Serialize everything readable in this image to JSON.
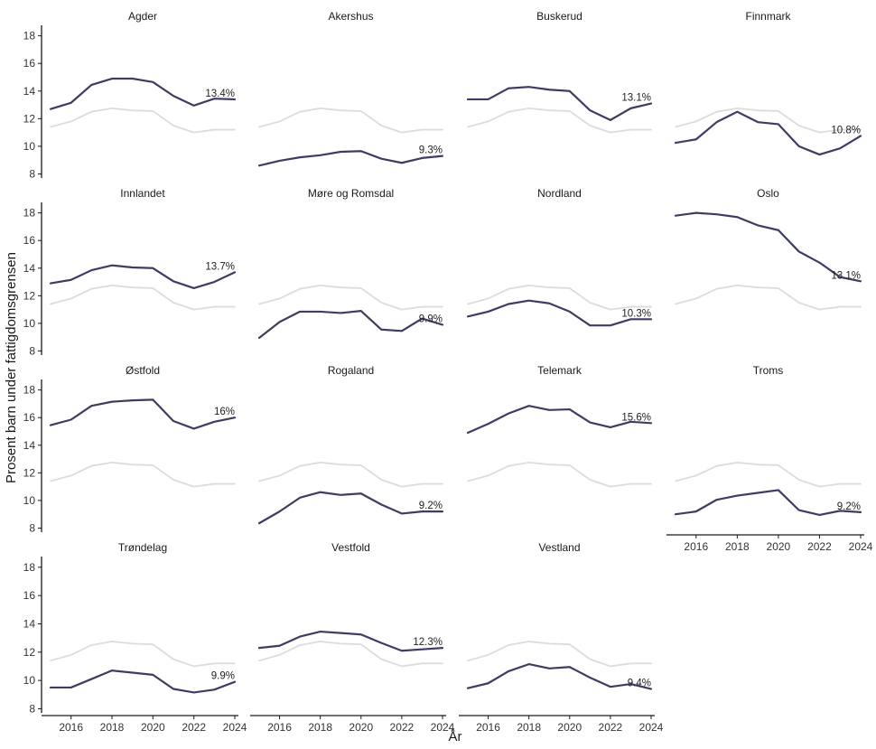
{
  "chart_data": {
    "type": "line",
    "title": "",
    "xlabel": "År",
    "ylabel": "Prosent barn under fattigdomsgrensen",
    "x": [
      2015,
      2016,
      2017,
      2018,
      2019,
      2020,
      2021,
      2022,
      2023,
      2024
    ],
    "x_ticks": [
      "2016",
      "2018",
      "2020",
      "2022",
      "2024"
    ],
    "y_ticks": [
      "8",
      "10",
      "12",
      "14",
      "16",
      "18"
    ],
    "xlim": [
      2015,
      2024
    ],
    "ylim": [
      7.9,
      18.5
    ],
    "grid": false,
    "colors": {
      "highlight": "#3d3d63",
      "background": "#dcdcdc"
    },
    "background_series": {
      "values": [
        11.4,
        11.8,
        12.5,
        12.75,
        12.6,
        12.55,
        11.5,
        11.0,
        11.2,
        11.2
      ]
    },
    "facets": [
      {
        "name": "Agder",
        "label": "13.4%",
        "values": [
          12.7,
          13.15,
          14.45,
          14.9,
          14.9,
          14.65,
          13.65,
          12.95,
          13.45,
          13.4
        ]
      },
      {
        "name": "Akershus",
        "label": "9.3%",
        "values": [
          8.6,
          8.95,
          9.2,
          9.35,
          9.6,
          9.65,
          9.1,
          8.8,
          9.15,
          9.3
        ]
      },
      {
        "name": "Buskerud",
        "label": "13.1%",
        "values": [
          13.4,
          13.4,
          14.2,
          14.3,
          14.1,
          14.0,
          12.6,
          11.9,
          12.75,
          13.1
        ]
      },
      {
        "name": "Finnmark",
        "label": "10.8%",
        "values": [
          10.25,
          10.5,
          11.75,
          12.5,
          11.75,
          11.6,
          10.0,
          9.4,
          9.85,
          10.75
        ]
      },
      {
        "name": "Innlandet",
        "label": "13.7%",
        "values": [
          12.9,
          13.15,
          13.85,
          14.2,
          14.05,
          14.0,
          13.05,
          12.55,
          13.0,
          13.7
        ]
      },
      {
        "name": "Møre og Romsdal",
        "label": "9.9%",
        "values": [
          8.95,
          10.1,
          10.85,
          10.85,
          10.75,
          10.9,
          9.55,
          9.45,
          10.35,
          9.9
        ]
      },
      {
        "name": "Nordland",
        "label": "10.3%",
        "values": [
          10.5,
          10.85,
          11.4,
          11.65,
          11.45,
          10.85,
          9.85,
          9.85,
          10.3,
          10.3
        ]
      },
      {
        "name": "Oslo",
        "label": "13.1%",
        "values": [
          17.8,
          18.0,
          17.9,
          17.7,
          17.1,
          16.75,
          15.2,
          14.4,
          13.35,
          13.05
        ]
      },
      {
        "name": "Østfold",
        "label": "16%",
        "values": [
          15.45,
          15.85,
          16.85,
          17.15,
          17.25,
          17.3,
          15.75,
          15.2,
          15.7,
          16.0
        ]
      },
      {
        "name": "Rogaland",
        "label": "9.2%",
        "values": [
          8.35,
          9.2,
          10.2,
          10.6,
          10.4,
          10.5,
          9.7,
          9.05,
          9.2,
          9.2
        ]
      },
      {
        "name": "Telemark",
        "label": "15.6%",
        "values": [
          14.9,
          15.55,
          16.3,
          16.85,
          16.55,
          16.6,
          15.65,
          15.3,
          15.7,
          15.6
        ]
      },
      {
        "name": "Troms",
        "label": "9.2%",
        "values": [
          9.0,
          9.2,
          10.05,
          10.35,
          10.55,
          10.75,
          9.3,
          8.95,
          9.25,
          9.15
        ]
      },
      {
        "name": "Trøndelag",
        "label": "9.9%",
        "values": [
          9.5,
          9.5,
          10.1,
          10.7,
          10.55,
          10.4,
          9.4,
          9.15,
          9.35,
          9.9
        ]
      },
      {
        "name": "Vestfold",
        "label": "12.3%",
        "values": [
          12.3,
          12.45,
          13.1,
          13.45,
          13.35,
          13.25,
          12.65,
          12.1,
          12.2,
          12.3
        ]
      },
      {
        "name": "Vestland",
        "label": "9.4%",
        "values": [
          9.45,
          9.8,
          10.65,
          11.15,
          10.85,
          10.95,
          10.2,
          9.55,
          9.75,
          9.4
        ]
      }
    ]
  }
}
